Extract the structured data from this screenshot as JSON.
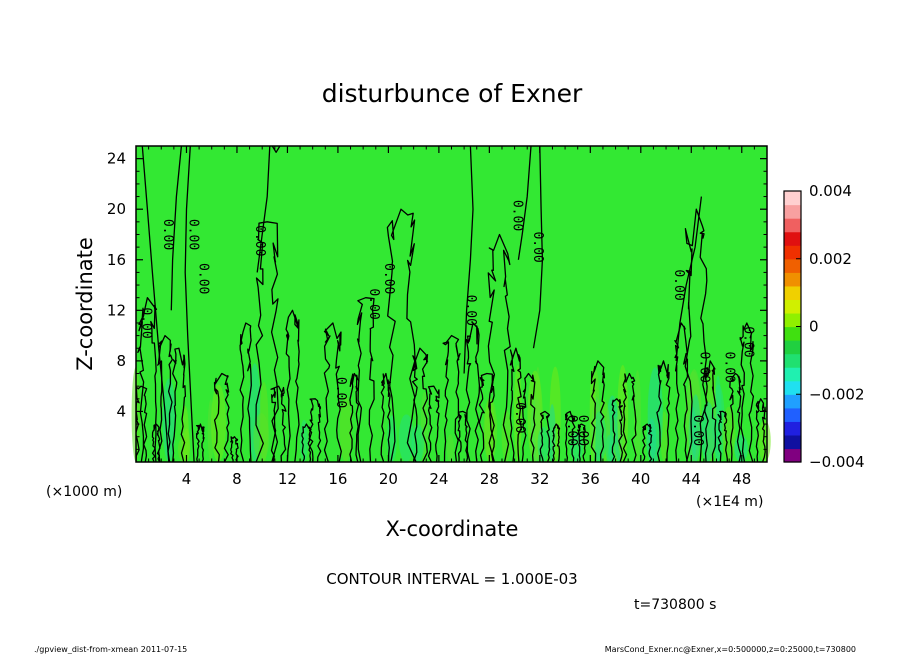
{
  "chart_data": {
    "type": "heatmap",
    "title": "disturbunce of Exner",
    "xlabel": "X-coordinate",
    "ylabel": "Z-coordinate",
    "x_unit_left": "(×1000 m)",
    "x_unit_right": "(×1E4 m)",
    "xlim": [
      0,
      50
    ],
    "ylim": [
      0,
      25
    ],
    "x_ticks": [
      4,
      8,
      12,
      16,
      20,
      24,
      28,
      32,
      36,
      40,
      44,
      48
    ],
    "y_ticks": [
      4,
      8,
      12,
      16,
      20,
      24
    ],
    "colorbar": {
      "ticks": [
        "0.004",
        "0.002",
        "0",
        "−0.002",
        "−0.004"
      ],
      "vmin": -0.004,
      "vmax": 0.004,
      "colors": [
        "#800080",
        "#1010a0",
        "#2020e0",
        "#2060ff",
        "#20a0ff",
        "#20e0f0",
        "#20f0b0",
        "#20e070",
        "#20d040",
        "#40e010",
        "#90f000",
        "#d0f000",
        "#f0d000",
        "#f09000",
        "#f06000",
        "#f03000",
        "#e01010",
        "#f06060",
        "#f8a0a0",
        "#ffd0d0"
      ]
    },
    "background_color": "#33e833",
    "contour_labels": [
      {
        "x": 0.8,
        "z": 11.0,
        "text": "0.00"
      },
      {
        "x": 2.5,
        "z": 18.0,
        "text": "0.00"
      },
      {
        "x": 4.5,
        "z": 18.0,
        "text": "0.00"
      },
      {
        "x": 5.3,
        "z": 14.5,
        "text": "0.00"
      },
      {
        "x": 9.8,
        "z": 17.5,
        "text": "0.00"
      },
      {
        "x": 18.8,
        "z": 12.5,
        "text": "0.00"
      },
      {
        "x": 20.0,
        "z": 14.5,
        "text": "0.00"
      },
      {
        "x": 16.2,
        "z": 5.5,
        "text": "0.00"
      },
      {
        "x": 26.5,
        "z": 12.0,
        "text": "0.00"
      },
      {
        "x": 30.2,
        "z": 19.5,
        "text": "0.00"
      },
      {
        "x": 31.8,
        "z": 17.0,
        "text": "0.00"
      },
      {
        "x": 30.4,
        "z": 3.5,
        "text": "0.00"
      },
      {
        "x": 34.5,
        "z": 2.5,
        "text": "0.00"
      },
      {
        "x": 35.4,
        "z": 2.5,
        "text": "0.00"
      },
      {
        "x": 43.0,
        "z": 14.0,
        "text": "0.00"
      },
      {
        "x": 45.0,
        "z": 7.5,
        "text": "0.00"
      },
      {
        "x": 44.5,
        "z": 2.5,
        "text": "0.00"
      },
      {
        "x": 47.0,
        "z": 7.5,
        "text": "0.00"
      },
      {
        "x": 48.5,
        "z": 9.5,
        "text": "0.00"
      }
    ],
    "contour_interval_text": "CONTOUR INTERVAL = 1.000E-03",
    "time_text": "t=730800 s"
  },
  "footer": {
    "left": "./gpview_dist-from-xmean  2011-07-15",
    "right": "MarsCond_Exner.nc@Exner,x=0:500000,z=0:25000,t=730800"
  }
}
